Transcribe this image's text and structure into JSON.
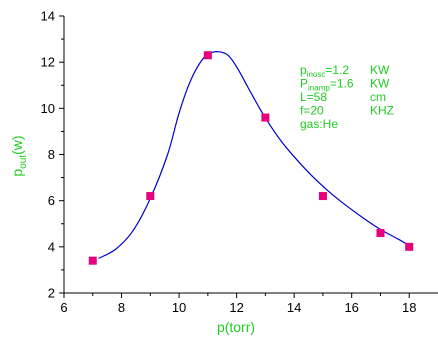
{
  "chart_data": {
    "type": "scatter",
    "xlabel": "p(torr)",
    "ylabel": "p",
    "ylabel_sub": "out",
    "ylabel_unit": "(w)",
    "xlim": [
      6,
      19
    ],
    "ylim": [
      2,
      14
    ],
    "x_ticks": [
      6,
      8,
      10,
      12,
      14,
      16,
      18
    ],
    "y_ticks": [
      2,
      4,
      6,
      8,
      10,
      12,
      14
    ],
    "grid": false,
    "label_color": "#22cc22",
    "marker_color": "#e6007e",
    "curve_color": "#0000cc",
    "series": [
      {
        "x": [
          7,
          9,
          11,
          13,
          15,
          17,
          18
        ],
        "y": [
          3.4,
          6.2,
          12.3,
          9.6,
          6.2,
          4.6,
          4.0
        ]
      }
    ],
    "fit_curve": {
      "x": [
        7.2,
        7.8,
        8.4,
        9.0,
        9.6,
        10.0,
        10.4,
        10.8,
        11.1,
        11.4,
        11.7,
        12.0,
        12.4,
        12.8,
        13.2,
        13.6,
        14.0,
        14.6,
        15.2,
        15.8,
        16.4,
        17.0,
        17.6,
        18.0
      ],
      "y": [
        3.5,
        3.9,
        4.7,
        6.1,
        8.0,
        9.8,
        11.2,
        12.1,
        12.4,
        12.45,
        12.3,
        11.8,
        10.9,
        10.0,
        9.2,
        8.5,
        7.9,
        7.1,
        6.4,
        5.8,
        5.25,
        4.75,
        4.35,
        4.05
      ]
    },
    "annotations": [
      {
        "main": "p",
        "sub": "inosc",
        "rest": "=1.2",
        "unit": "KW"
      },
      {
        "main": "P",
        "sub": "inamp",
        "rest": "=1.6",
        "unit": "KW"
      },
      {
        "main": "L=58",
        "sub": "",
        "rest": "",
        "unit": "cm"
      },
      {
        "main": "f=20",
        "sub": "",
        "rest": "",
        "unit": "KHZ"
      },
      {
        "main": "gas:He",
        "sub": "",
        "rest": "",
        "unit": ""
      }
    ]
  }
}
